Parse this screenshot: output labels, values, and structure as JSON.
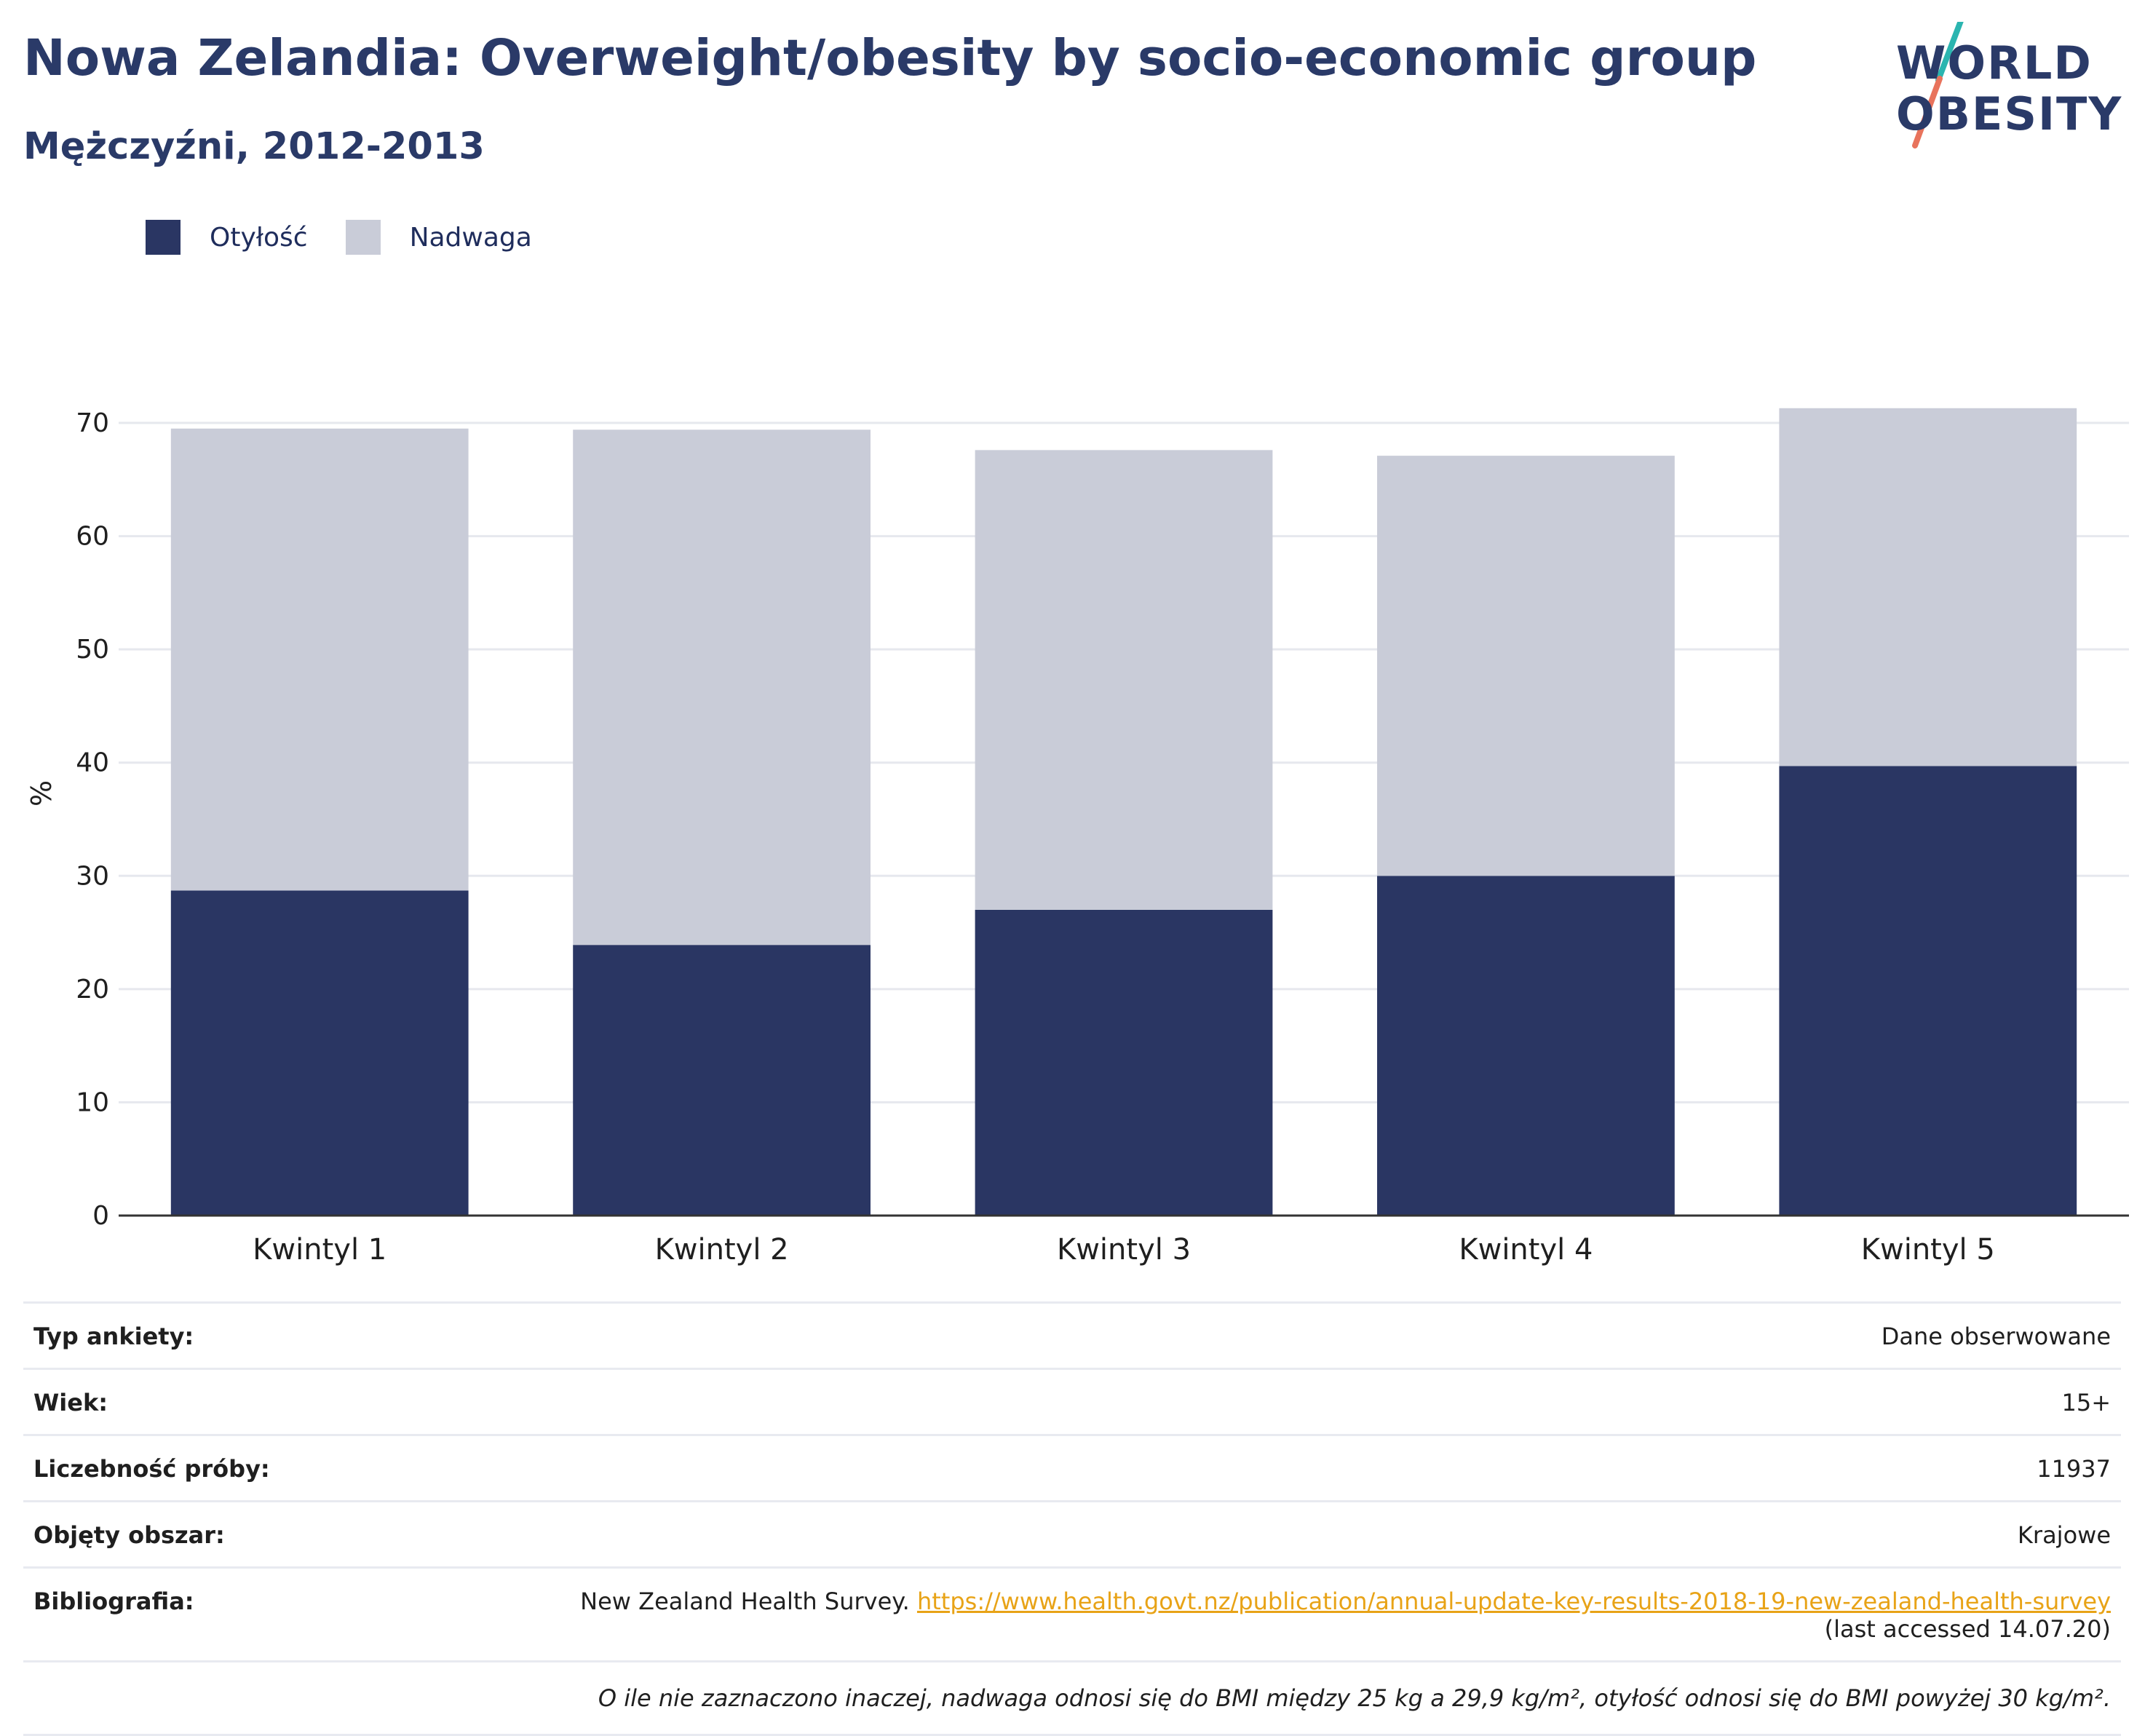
{
  "title": "Nowa Zelandia: Overweight/obesity by socio-economic group",
  "subtitle": "Mężczyźni, 2012-2013",
  "logo": {
    "line1": "WORLD",
    "line2": "OBESITY"
  },
  "colors": {
    "obesity": "#2a3663",
    "overweight": "#c9ccd8",
    "title": "#2a3a68",
    "link": "#e8a317"
  },
  "legend": [
    {
      "label": "Otyłość",
      "color": "#2a3663"
    },
    {
      "label": "Nadwaga",
      "color": "#c9ccd8"
    }
  ],
  "chart_data": {
    "type": "bar",
    "stacked": true,
    "categories": [
      "Kwintyl 1",
      "Kwintyl 2",
      "Kwintyl 3",
      "Kwintyl 4",
      "Kwintyl 5"
    ],
    "series": [
      {
        "name": "Otyłość",
        "values": [
          28.7,
          23.9,
          27.0,
          30.0,
          39.7
        ]
      },
      {
        "name": "Nadwaga",
        "values": [
          40.8,
          45.5,
          40.6,
          37.1,
          31.6
        ]
      }
    ],
    "ylabel": "%",
    "ylim": [
      0,
      70
    ],
    "yticks": [
      0,
      10,
      20,
      30,
      40,
      50,
      60,
      70
    ],
    "grid": true,
    "legend_position": "top-left"
  },
  "meta": {
    "survey_type_label": "Typ ankiety:",
    "survey_type": "Dane obserwowane",
    "age_label": "Wiek:",
    "age": "15+",
    "sample_size_label": "Liczebność próby:",
    "sample_size": "11937",
    "area_label": "Objęty obszar:",
    "area": "Krajowe",
    "bibliography_label": "Bibliografia:",
    "bibliography_source": "New Zealand Health Survey.",
    "bibliography_url": "https://www.health.govt.nz/publication/annual-update-key-results-2018-19-new-zealand-health-survey",
    "bibliography_accessed": "(last accessed 14.07.20)",
    "note": "O ile nie zaznaczono inaczej, nadwaga odnosi się do BMI między 25 kg a 29,9 kg/m², otyłość odnosi się do BMI powyżej 30 kg/m²."
  }
}
